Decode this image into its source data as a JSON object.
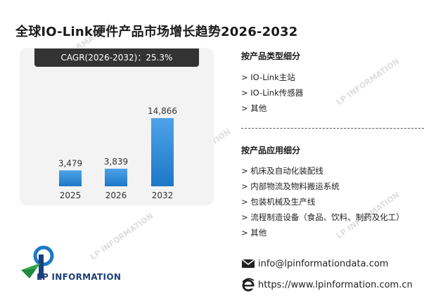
{
  "title": "全球IO-Link硬件产品市场增长趋势2026-2032",
  "cagr_label": "CAGR(2026-2032)：25.3%",
  "chart_data": {
    "type": "bar",
    "categories": [
      "2025",
      "2026",
      "2032"
    ],
    "values": [
      3479,
      3839,
      14866
    ],
    "data_labels": [
      "3,479",
      "3,839",
      "14,866"
    ],
    "bar_color_top": "#4da3e8",
    "bar_color_bottom": "#1d78c8"
  },
  "by_product": {
    "title": "按产品类型细分",
    "items": [
      "> IO-Link主站",
      "> IO-Link传感器",
      "> 其他"
    ]
  },
  "by_application": {
    "title": "按产品应用细分",
    "items": [
      "> 机床及自动化装配线",
      "> 内部物流及物料搬运系统",
      "> 包装机械及生产线",
      "> 流程制造设备（食品、饮料、制药及化工）",
      "> 其他"
    ]
  },
  "contact": {
    "email": "info@lpinformationdata.com",
    "website": "https://www.lpinformation.com.cn"
  },
  "logo": {
    "text": "LP INFORMATION"
  },
  "icons": {
    "email": "envelope-icon",
    "website": "internet-explorer-icon"
  }
}
